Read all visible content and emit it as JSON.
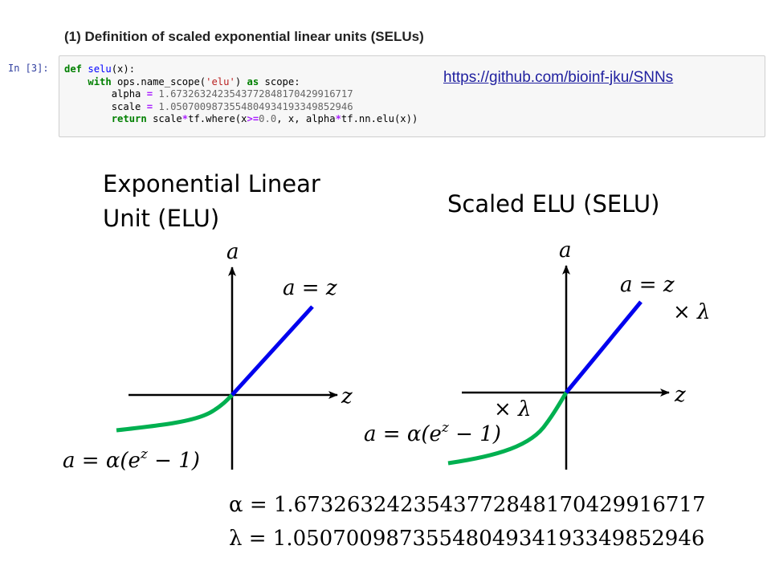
{
  "heading": "(1) Definition of scaled exponential linear units (SELUs)",
  "cell": {
    "prompt": "In [3]:",
    "link": "https://github.com/bioinf-jku/SNNs",
    "alpha_value": "1.6732632423543772848170429916717",
    "scale_value": "1.0507009873554804934193349852946"
  },
  "elu_title": "Exponential Linear Unit (ELU)",
  "selu_title": "Scaled ELU (SELU)",
  "labels": {
    "a": "a",
    "z": "z",
    "pos_branch": "a = z",
    "neg_branch": "a = α(e",
    "neg_exp": "z",
    "neg_tail": " − 1)",
    "times_lambda": "× λ"
  },
  "constants": {
    "alpha_line": "α = 1.6732632423543772848170429916717",
    "lambda_line": "λ = 1.0507009873554804934193349852946"
  },
  "colors": {
    "positive": "#0000ee",
    "negative": "#00b050",
    "axis": "#000000"
  }
}
